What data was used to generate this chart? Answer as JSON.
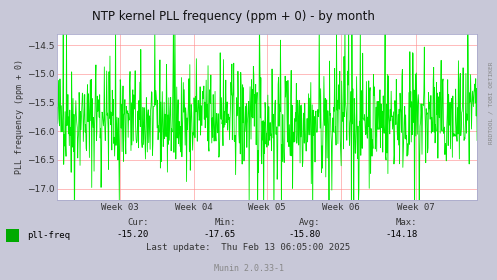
{
  "title": "NTP kernel PLL frequency (ppm + 0) - by month",
  "ylabel": "PLL frequency (ppm + 0)",
  "ylim": [
    -17.2,
    -14.3
  ],
  "yticks": [
    -17.0,
    -16.5,
    -16.0,
    -15.5,
    -15.0,
    -14.5
  ],
  "xtick_labels": [
    "Week 03",
    "Week 04",
    "Week 05",
    "Week 06",
    "Week 07"
  ],
  "bg_color": "#c8c8d8",
  "plot_bg_color": "#ffffff",
  "line_color": "#00ee00",
  "grid_color_major": "#ff8888",
  "grid_color_minor": "#ffcccc",
  "title_color": "#111111",
  "label_color": "#333333",
  "legend_label": "pll-freq",
  "legend_color": "#00aa00",
  "cur": "-15.20",
  "min": "-17.65",
  "avg": "-15.80",
  "max": "-14.18",
  "last_update": "Thu Feb 13 06:05:00 2025",
  "munin_version": "Munin 2.0.33-1",
  "watermark": "RRDTOOL / TOBI OETIKER",
  "seed": 42,
  "n_points": 900,
  "base_value": -15.8,
  "noise_scale": 0.45,
  "spike_prob": 0.12,
  "spike_scale": 1.0
}
